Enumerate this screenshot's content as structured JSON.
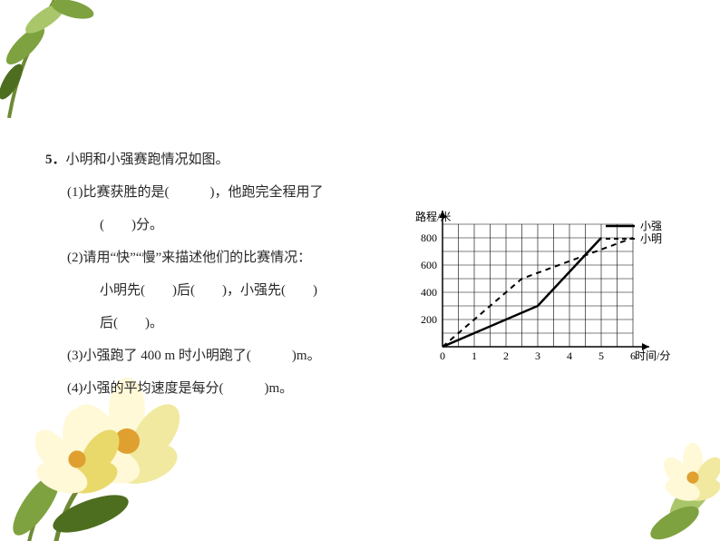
{
  "problem": {
    "number": "5．",
    "stem": "小明和小强赛跑情况如图。",
    "q1_prefix": "(1)比赛获胜的是(",
    "q1_mid": ")，他跑完全程用了",
    "q1b_prefix": "(",
    "q1b_suffix": ")分。",
    "q2_intro": "(2)请用“快”“慢”来描述他们的比赛情况：",
    "q2a_p1": "小明先(",
    "q2a_p2": ")后(",
    "q2a_p3": ")，小强先(",
    "q2a_p4": ")",
    "q2b_p1": "后(",
    "q2b_p2": ")。",
    "q3_p1": "(3)小强跑了 400 m 时小明跑了(",
    "q3_p2": ")m。",
    "q4_p1": "(4)小强的平均速度是每分(",
    "q4_p2": ")m。",
    "blank_wide": "　　　",
    "blank_mid": "　　",
    "blank_small": "　　"
  },
  "chart": {
    "type": "line",
    "y_label": "路程/米",
    "x_label": "时间/分",
    "legend": {
      "solid": "小强",
      "dashed": "小明"
    },
    "x_ticks": [
      "0",
      "1",
      "2",
      "3",
      "4",
      "5",
      "6"
    ],
    "y_ticks": [
      "200",
      "400",
      "600",
      "800"
    ],
    "x_range": [
      0,
      6
    ],
    "y_range": [
      0,
      900
    ],
    "grid_x_count": 12,
    "grid_y_count": 9,
    "grid_color": "#000000",
    "background_color": "#ffffff",
    "axis_fontsize": 12,
    "series": {
      "xiaoqiang": {
        "style": "solid",
        "color": "#000000",
        "width": 2.5,
        "points": [
          [
            0,
            0
          ],
          [
            3,
            300
          ],
          [
            5,
            800
          ]
        ]
      },
      "xiaoming": {
        "style": "dashed",
        "color": "#000000",
        "width": 2,
        "dash": "6,5",
        "points": [
          [
            0,
            0
          ],
          [
            2.5,
            500
          ],
          [
            6,
            800
          ]
        ]
      }
    }
  },
  "colors": {
    "text": "#282828",
    "petal_light": "#fff9d8",
    "petal_mid": "#f1e9a0",
    "petal_dark": "#e9d96b",
    "leaf_light": "#a9c66a",
    "leaf_mid": "#7ea23f",
    "leaf_dark": "#4e6e1f",
    "orange": "#e0a030"
  }
}
